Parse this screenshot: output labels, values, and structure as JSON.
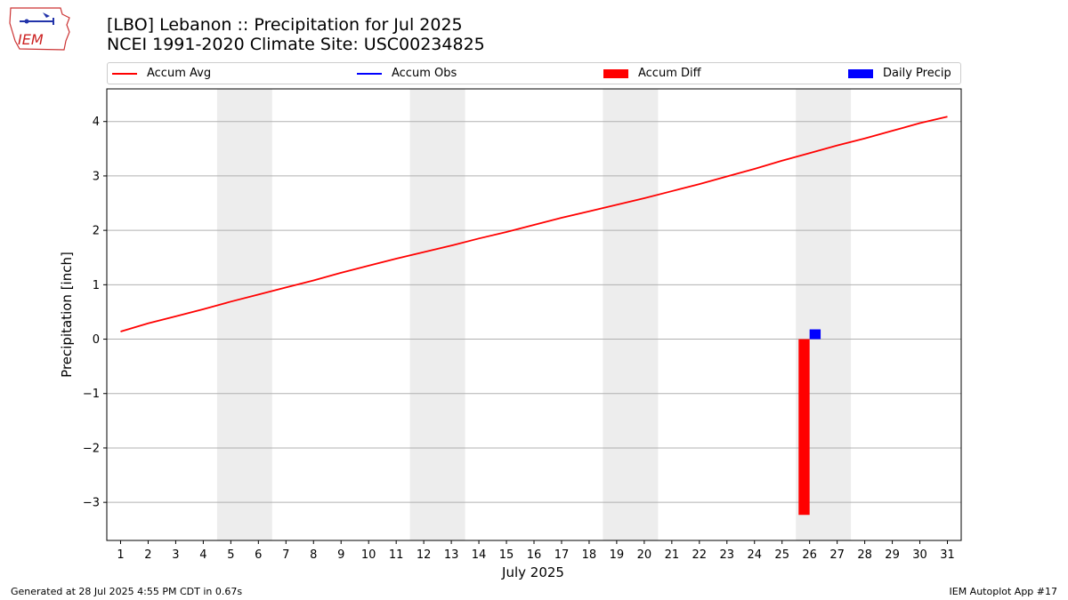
{
  "header": {
    "title_line1": "[LBO] Lebanon :: Precipitation for Jul 2025",
    "title_line2": "NCEI 1991-2020 Climate Site: USC00234825",
    "logo_text": "IEM"
  },
  "footer": {
    "generated": "Generated at 28 Jul 2025 4:55 PM CDT in 0.67s",
    "app": "IEM Autoplot App #17"
  },
  "colors": {
    "accum_avg": "#ff0000",
    "accum_obs": "#0000ff",
    "accum_diff": "#ff0000",
    "daily_precip": "#0000ff",
    "weekend_band": "#ededed",
    "grid": "#b0b0b0"
  },
  "chart_data": {
    "type": "line",
    "xlabel": "July 2025",
    "ylabel": "Precipitation [inch]",
    "ylim": [
      -3.7,
      4.6
    ],
    "yticks": [
      -3,
      -2,
      -1,
      0,
      1,
      2,
      3,
      4
    ],
    "ytick_labels": [
      "−3",
      "−2",
      "−1",
      "0",
      "1",
      "2",
      "3",
      "4"
    ],
    "x": [
      1,
      2,
      3,
      4,
      5,
      6,
      7,
      8,
      9,
      10,
      11,
      12,
      13,
      14,
      15,
      16,
      17,
      18,
      19,
      20,
      21,
      22,
      23,
      24,
      25,
      26,
      27,
      28,
      29,
      30,
      31
    ],
    "xtick_labels": [
      "1",
      "2",
      "3",
      "4",
      "5",
      "6",
      "7",
      "8",
      "9",
      "10",
      "11",
      "12",
      "13",
      "14",
      "15",
      "16",
      "17",
      "18",
      "19",
      "20",
      "21",
      "22",
      "23",
      "24",
      "25",
      "26",
      "27",
      "28",
      "29",
      "30",
      "31"
    ],
    "xlim": [
      0.5,
      31.5
    ],
    "grid": "horizontal",
    "legend": {
      "placement": "top",
      "entries": [
        "Accum Avg",
        "Accum Obs",
        "Accum Diff",
        "Daily Precip"
      ]
    },
    "weekend_days": [
      [
        5,
        6
      ],
      [
        12,
        13
      ],
      [
        19,
        20
      ],
      [
        26,
        27
      ]
    ],
    "series": [
      {
        "name": "Accum Avg",
        "type": "line",
        "values": [
          0.14,
          0.29,
          0.42,
          0.55,
          0.69,
          0.82,
          0.95,
          1.08,
          1.22,
          1.35,
          1.48,
          1.6,
          1.72,
          1.85,
          1.97,
          2.1,
          2.23,
          2.35,
          2.47,
          2.59,
          2.72,
          2.85,
          2.99,
          3.13,
          3.28,
          3.42,
          3.56,
          3.69,
          3.83,
          3.97,
          4.09
        ]
      },
      {
        "name": "Accum Diff",
        "type": "bar",
        "x": [
          26
        ],
        "values": [
          -3.23
        ]
      },
      {
        "name": "Daily Precip",
        "type": "bar",
        "x": [
          26
        ],
        "values": [
          0.18
        ]
      }
    ]
  }
}
